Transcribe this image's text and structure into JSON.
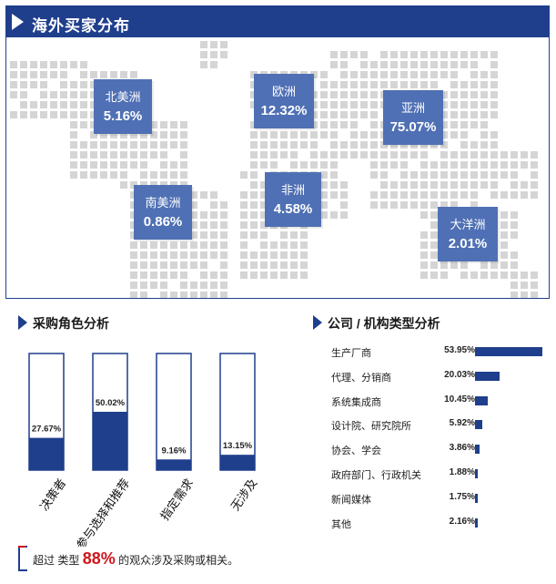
{
  "map": {
    "title": "海外买家分布",
    "regions": [
      {
        "name": "北美洲",
        "value": "5.16%"
      },
      {
        "name": "欧洲",
        "value": "12.32%"
      },
      {
        "name": "亚洲",
        "value": "75.07%"
      },
      {
        "name": "南美洲",
        "value": "0.86%"
      },
      {
        "name": "非洲",
        "value": "4.58%"
      },
      {
        "name": "大洋洲",
        "value": "2.01%"
      }
    ]
  },
  "roles": {
    "title": "采购角色分析"
  },
  "types": {
    "title": "公司 / 机构类型分析"
  },
  "footer": {
    "prefix": "超过 类型",
    "pct": "88%",
    "suffix": "的观众涉及采购或相关。"
  },
  "colors": {
    "accent": "#1f3e8c",
    "region_box": "#4f70b4",
    "dot": "#d5d5d5",
    "highlight": "#d0161c"
  },
  "chart_data": [
    {
      "type": "bar",
      "categories": [
        "决策者",
        "参与选择和推荐",
        "指定需求",
        "无涉及"
      ],
      "values": [
        27.67,
        50.02,
        9.16,
        13.15
      ],
      "value_labels": [
        "27.67%",
        "50.02%",
        "9.16%",
        "13.15%"
      ],
      "ylim": [
        0,
        100
      ]
    },
    {
      "type": "bar",
      "orientation": "horizontal",
      "categories": [
        "生产厂商",
        "代理、分销商",
        "系统集成商",
        "设计院、研究院所",
        "协会、学会",
        "政府部门、行政机关",
        "新闻媒体",
        "其他"
      ],
      "values": [
        53.95,
        20.03,
        10.45,
        5.92,
        3.86,
        1.88,
        1.75,
        2.16
      ],
      "value_labels": [
        "53.95%",
        "20.03%",
        "10.45%",
        "5.92%",
        "3.86%",
        "1.88%",
        "1.75%",
        "2.16%"
      ]
    }
  ]
}
